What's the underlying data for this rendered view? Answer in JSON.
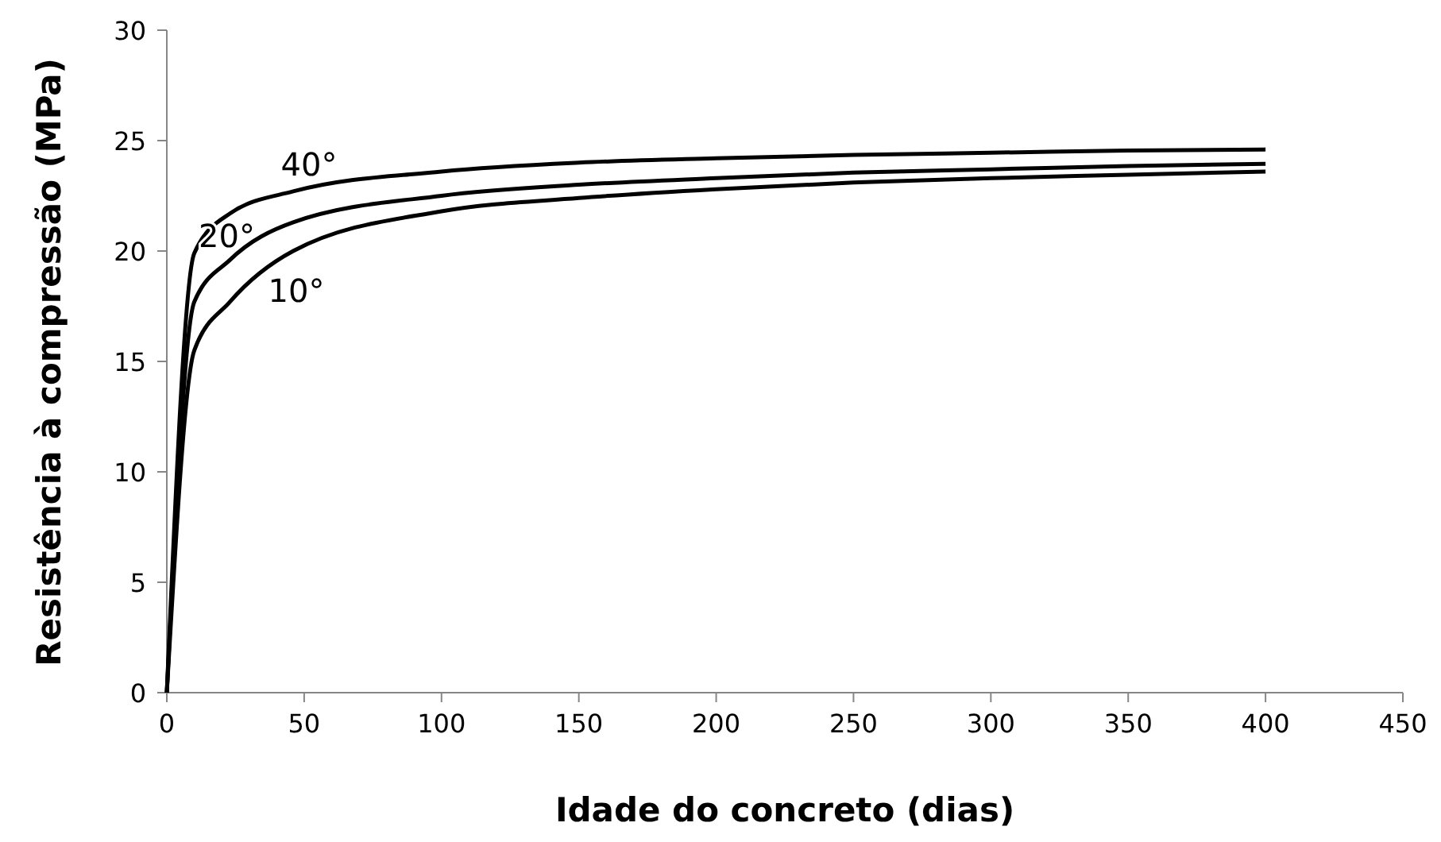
{
  "chart_data": {
    "type": "line",
    "xlabel": "Idade do concreto (dias)",
    "ylabel": "Resistência à compressão (MPa)",
    "x": [
      0,
      10,
      23,
      46,
      100,
      150,
      200,
      250,
      300,
      350,
      400
    ],
    "xlim": [
      0,
      450
    ],
    "xticks": [
      0,
      50,
      100,
      150,
      200,
      250,
      300,
      350,
      400,
      450
    ],
    "ylim": [
      0,
      30
    ],
    "yticks": [
      0,
      5,
      10,
      15,
      20,
      25,
      30
    ],
    "grid": false,
    "marker": "none",
    "line_style": "solid",
    "series": [
      {
        "name": "40°",
        "color": "#000000",
        "values": [
          0,
          19.9,
          21.7,
          22.7,
          23.6,
          24.0,
          24.2,
          24.35,
          24.45,
          24.55,
          24.6
        ]
      },
      {
        "name": "20°",
        "color": "#000000",
        "values": [
          0,
          17.7,
          19.6,
          21.3,
          22.5,
          23.0,
          23.3,
          23.55,
          23.7,
          23.85,
          23.95
        ]
      },
      {
        "name": "10°",
        "color": "#000000",
        "values": [
          0,
          15.5,
          17.7,
          20.0,
          21.8,
          22.4,
          22.8,
          23.1,
          23.3,
          23.45,
          23.6
        ]
      }
    ]
  }
}
